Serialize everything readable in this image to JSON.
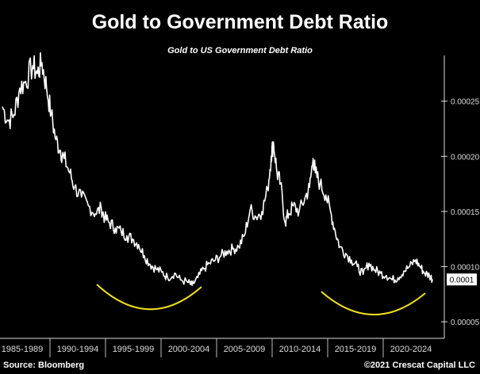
{
  "title": "Gold to Government Debt Ratio",
  "subtitle": "Gold to US Government Debt Ratio",
  "source": "Source: Bloomberg",
  "copyright": "©2021 Crescat Capital LLC",
  "colors": {
    "background": "#000000",
    "line": "#ffffff",
    "highlight": "#f2e21a",
    "callout_box": "#ffffff"
  },
  "chart_data": {
    "type": "line",
    "title": "Gold to US Government Debt Ratio",
    "ylim": [
      4e-05,
      0.00029
    ],
    "xlim": [
      1985,
      2022.5
    ],
    "y_ticks": [
      {
        "value": 5e-05,
        "label": "0.00005"
      },
      {
        "value": 0.0001,
        "label": "0.00010"
      },
      {
        "value": 0.00015,
        "label": "0.00015"
      },
      {
        "value": 0.0002,
        "label": "0.00020"
      },
      {
        "value": 0.00025,
        "label": "0.00025"
      }
    ],
    "x_ticks": [
      "1985-1989",
      "1990-1994",
      "1995-1999",
      "2000-2004",
      "2005-2009",
      "2010-2014",
      "2015-2019",
      "2020-2024"
    ],
    "grid": false,
    "legend": "none",
    "latest_value_label": "0.0001",
    "series": [
      {
        "values": [
          [
            1985.0,
            0.000245
          ],
          [
            1985.5,
            0.000232
          ],
          [
            1986.0,
            0.000238
          ],
          [
            1986.5,
            0.000262
          ],
          [
            1987.0,
            0.000268
          ],
          [
            1987.6,
            0.000282
          ],
          [
            1988.0,
            0.000275
          ],
          [
            1988.4,
            0.000285
          ],
          [
            1988.8,
            0.000262
          ],
          [
            1989.2,
            0.000238
          ],
          [
            1989.6,
            0.000215
          ],
          [
            1990.0,
            0.000205
          ],
          [
            1990.3,
            0.000198
          ],
          [
            1990.8,
            0.000185
          ],
          [
            1991.2,
            0.000172
          ],
          [
            1991.8,
            0.000163
          ],
          [
            1992.4,
            0.000155
          ],
          [
            1993.0,
            0.000148
          ],
          [
            1993.5,
            0.000153
          ],
          [
            1993.8,
            0.000144
          ],
          [
            1994.2,
            0.00014
          ],
          [
            1994.7,
            0.000135
          ],
          [
            1995.2,
            0.000132
          ],
          [
            1995.7,
            0.000128
          ],
          [
            1996.2,
            0.000125
          ],
          [
            1996.7,
            0.00012
          ],
          [
            1997.2,
            0.00011
          ],
          [
            1997.7,
            0.000102
          ],
          [
            1998.2,
            9.8e-05
          ],
          [
            1998.7,
            9.5e-05
          ],
          [
            1999.2,
            9e-05
          ],
          [
            1999.8,
            9.4e-05
          ],
          [
            2000.3,
            8.8e-05
          ],
          [
            2000.9,
            8.6e-05
          ],
          [
            2001.3,
            8.3e-05
          ],
          [
            2001.8,
            9e-05
          ],
          [
            2002.3,
            9.8e-05
          ],
          [
            2002.8,
            0.000103
          ],
          [
            2003.3,
            0.000106
          ],
          [
            2003.8,
            0.00011
          ],
          [
            2004.3,
            0.000114
          ],
          [
            2004.8,
            0.000116
          ],
          [
            2005.3,
            0.000118
          ],
          [
            2005.8,
            0.000128
          ],
          [
            2006.3,
            0.000152
          ],
          [
            2006.8,
            0.000145
          ],
          [
            2007.3,
            0.00015
          ],
          [
            2007.8,
            0.00017
          ],
          [
            2008.1,
            0.0002
          ],
          [
            2008.3,
            0.000213
          ],
          [
            2008.6,
            0.000185
          ],
          [
            2008.9,
            0.000175
          ],
          [
            2009.3,
            0.00014
          ],
          [
            2009.6,
            0.000148
          ],
          [
            2010.0,
            0.000155
          ],
          [
            2010.5,
            0.00015
          ],
          [
            2011.0,
            0.000162
          ],
          [
            2011.4,
            0.000172
          ],
          [
            2011.7,
            0.000198
          ],
          [
            2011.9,
            0.000185
          ],
          [
            2012.3,
            0.000175
          ],
          [
            2012.8,
            0.000165
          ],
          [
            2013.2,
            0.00015
          ],
          [
            2013.6,
            0.000132
          ],
          [
            2014.0,
            0.000118
          ],
          [
            2014.5,
            0.000112
          ],
          [
            2015.0,
            0.000106
          ],
          [
            2015.5,
            0.0001
          ],
          [
            2016.0,
            9.3e-05
          ],
          [
            2016.5,
            0.000103
          ],
          [
            2017.0,
            9.7e-05
          ],
          [
            2017.5,
            9.4e-05
          ],
          [
            2018.0,
            9.2e-05
          ],
          [
            2018.5,
            8.8e-05
          ],
          [
            2019.0,
            9e-05
          ],
          [
            2019.5,
            9.6e-05
          ],
          [
            2020.0,
            0.0001
          ],
          [
            2020.5,
            0.000106
          ],
          [
            2020.9,
            0.0001
          ],
          [
            2021.3,
            9.4e-05
          ],
          [
            2021.7,
            9.2e-05
          ],
          [
            2022.0,
            8.8e-05
          ]
        ]
      }
    ]
  }
}
